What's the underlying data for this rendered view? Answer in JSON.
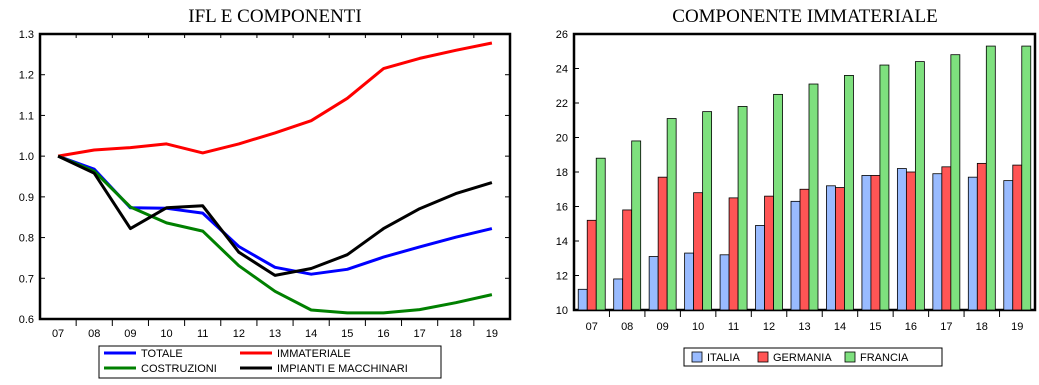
{
  "chart_data": [
    {
      "type": "line",
      "title": "IFL E COMPONENTI",
      "categories": [
        "07",
        "08",
        "09",
        "10",
        "11",
        "12",
        "13",
        "14",
        "15",
        "16",
        "17",
        "18",
        "19"
      ],
      "ylim": [
        0.6,
        1.3
      ],
      "yticks": [
        "0.6",
        "0.7",
        "0.8",
        "0.9",
        "1.0",
        "1.1",
        "1.2",
        "1.3"
      ],
      "grid": false,
      "legend_position": "bottom",
      "series": [
        {
          "name": "TOTALE",
          "color": "#0000ff",
          "values": [
            1.0,
            0.968,
            0.873,
            0.872,
            0.86,
            0.778,
            0.727,
            0.71,
            0.722,
            0.752,
            0.777,
            0.801,
            0.822
          ]
        },
        {
          "name": "IMMATERIALE",
          "color": "#ff0000",
          "values": [
            1.0,
            1.015,
            1.021,
            1.03,
            1.008,
            1.03,
            1.057,
            1.087,
            1.142,
            1.215,
            1.24,
            1.26,
            1.278
          ]
        },
        {
          "name": "COSTRUZIONI",
          "color": "#008000",
          "values": [
            1.0,
            0.963,
            0.875,
            0.836,
            0.816,
            0.731,
            0.668,
            0.622,
            0.615,
            0.615,
            0.623,
            0.64,
            0.66
          ]
        },
        {
          "name": "IMPIANTI E MACCHINARI",
          "color": "#000000",
          "values": [
            1.0,
            0.958,
            0.822,
            0.873,
            0.878,
            0.764,
            0.707,
            0.724,
            0.758,
            0.822,
            0.871,
            0.908,
            0.935
          ]
        }
      ]
    },
    {
      "type": "bar",
      "title": "COMPONENTE IMMATERIALE",
      "categories": [
        "07",
        "08",
        "09",
        "10",
        "11",
        "12",
        "13",
        "14",
        "15",
        "16",
        "17",
        "18",
        "19"
      ],
      "ylim": [
        10,
        26
      ],
      "yticks": [
        "10",
        "12",
        "14",
        "16",
        "18",
        "20",
        "22",
        "24",
        "26"
      ],
      "grid": false,
      "legend_position": "bottom",
      "series": [
        {
          "name": "ITALIA",
          "color": "#99bbff",
          "values": [
            11.2,
            11.8,
            13.1,
            13.3,
            13.2,
            14.9,
            16.3,
            17.2,
            17.8,
            18.2,
            17.9,
            17.7,
            17.5
          ]
        },
        {
          "name": "GERMANIA",
          "color": "#ff5555",
          "values": [
            15.2,
            15.8,
            17.7,
            16.8,
            16.5,
            16.6,
            17.0,
            17.1,
            17.8,
            18.0,
            18.3,
            18.5,
            18.4
          ]
        },
        {
          "name": "FRANCIA",
          "color": "#7ee07e",
          "values": [
            18.8,
            19.8,
            21.1,
            21.5,
            21.8,
            22.5,
            23.1,
            23.6,
            24.2,
            24.4,
            24.8,
            25.3,
            25.3
          ]
        }
      ]
    }
  ]
}
